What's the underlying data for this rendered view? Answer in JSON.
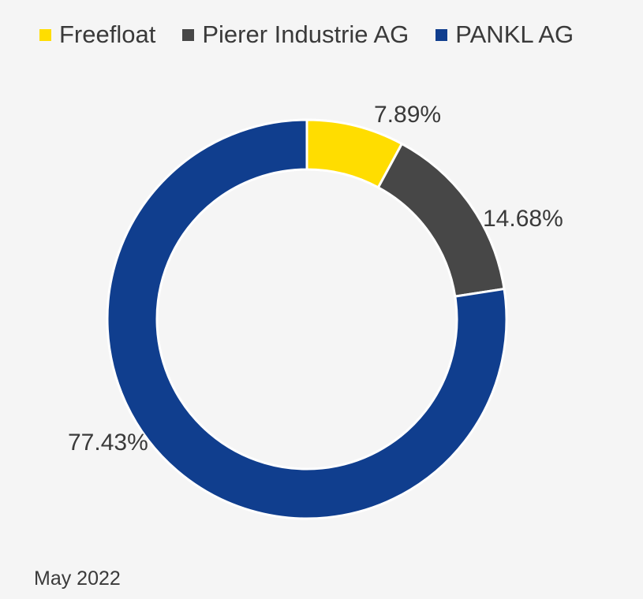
{
  "chart_data": {
    "type": "pie",
    "variant": "donut",
    "legend_position": "top",
    "series": [
      {
        "name": "Freefloat",
        "value": 7.89,
        "label": "7.89%",
        "color": "#FFDD00"
      },
      {
        "name": "Pierer Industrie AG",
        "value": 14.68,
        "label": "14.68%",
        "color": "#474747"
      },
      {
        "name": "PANKL AG",
        "value": 77.43,
        "label": "77.43%",
        "color": "#103E8E"
      }
    ]
  },
  "footnote": "May 2022"
}
